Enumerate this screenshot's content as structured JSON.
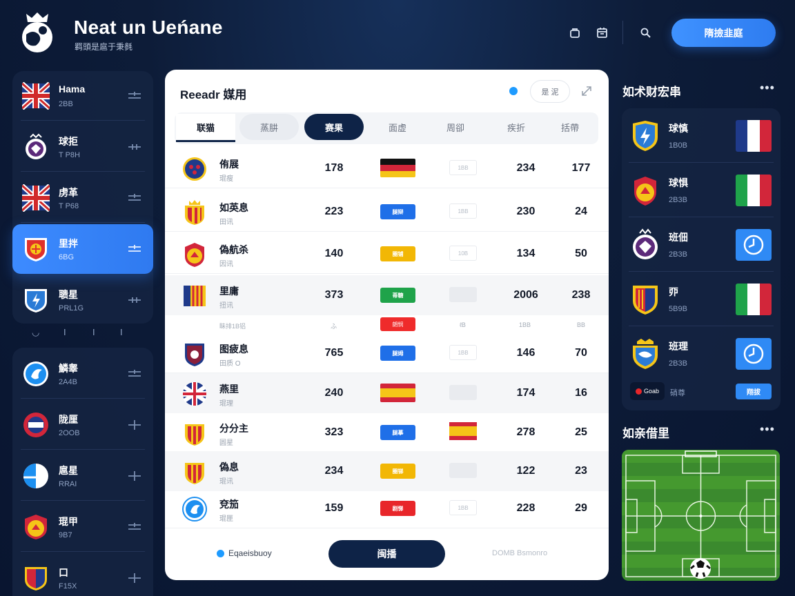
{
  "header": {
    "title": "Neat un Ueńane",
    "subtitle": "羁頭是扈于秉毵",
    "cta_label": "隋撿韭庭",
    "icons": [
      "bag-icon",
      "calendar-icon",
      "search-icon"
    ]
  },
  "sidebar": {
    "items": [
      {
        "name": "Hama",
        "sub": "2BB",
        "crest": "england-crest"
      },
      {
        "name": "球拒",
        "sub": "T P8H",
        "crest": "purple-crest"
      },
      {
        "name": "虏革",
        "sub": "T P68",
        "crest": "england-crest"
      },
      {
        "name": "里拌",
        "sub": "6BG",
        "crest": "red-yellow-shield"
      },
      {
        "name": "聩星",
        "sub": "PRL1G",
        "crest": "blue-shield"
      }
    ],
    "ticks": [
      "◡",
      "I",
      "I",
      "I"
    ],
    "items2": [
      {
        "name": "鱗睾",
        "sub": "2A4B",
        "crest": "blue-circle"
      },
      {
        "name": "陇厘",
        "sub": "2OOB",
        "crest": "red-blue-crest"
      },
      {
        "name": "扈星",
        "sub": "RRAI",
        "crest": "blue-white-circle"
      },
      {
        "name": "琨甲",
        "sub": "9B7",
        "crest": "yellow-red-crest"
      },
      {
        "name": "口",
        "sub": "F15X",
        "crest": "red-blue-shield"
      }
    ]
  },
  "standings": {
    "title": "Reeadr 媒用",
    "pill_label": "是 泥",
    "tabs": [
      "联猫",
      "蒸肼",
      "赛果",
      "面虚",
      "周卻",
      "疾折",
      "括帶"
    ],
    "rows": [
      {
        "name": "侑展",
        "sub": "琨瘦",
        "n1": "178",
        "mid": "flag-germany",
        "n2": "234",
        "n3": "177",
        "crest": "navy-red-circle",
        "badge2": "1BB"
      },
      {
        "name": "如英息",
        "sub": "田讯",
        "n1": "223",
        "mid": "blue",
        "mid_text": "腿辯",
        "n2": "230",
        "n3": "24",
        "crest": "spain-crest",
        "badge2": "1BB"
      },
      {
        "name": "偽航杀",
        "sub": "因讯",
        "n1": "140",
        "mid": "yellow",
        "mid_text": "圈铺",
        "n2": "134",
        "n3": "50",
        "crest": "yellow-red-crest",
        "badge2": "10B"
      },
      {
        "name": "里庸",
        "sub": "扭讯",
        "n1": "373",
        "mid": "green",
        "mid_text": "蒂糖",
        "n2": "2006",
        "n3": "238",
        "crest": "barca-flag",
        "badge2": "filled"
      },
      {
        "name": "图疲息",
        "sub": "田质 O",
        "n1": "765",
        "mid": "blue",
        "mid_text": "腿姆",
        "n2": "146",
        "n3": "70",
        "crest": "maroon-shield",
        "badge2": "1BB"
      },
      {
        "name": "燕里",
        "sub": "琨理",
        "n1": "240",
        "mid": "flag-spain",
        "n2": "174",
        "n3": "16",
        "crest": "uk-circle",
        "badge2": "filled"
      },
      {
        "name": "分分主",
        "sub": "圆星",
        "n1": "323",
        "mid": "blue",
        "mid_text": "腿摹",
        "n2": "278",
        "n3": "25",
        "crest": "spain-crest",
        "badge2": "flag-spain"
      },
      {
        "name": "偽息",
        "sub": "琨讯",
        "n1": "234",
        "mid": "yellow",
        "mid_text": "圈锑",
        "n2": "122",
        "n3": "23",
        "crest": "spain-crest",
        "badge2": "filled"
      },
      {
        "name": "兗笳",
        "sub": "琨匣",
        "n1": "159",
        "mid": "red",
        "mid_text": "剧悌",
        "n2": "228",
        "n3": "29",
        "crest": "blue-circle",
        "badge2": "1BB"
      }
    ],
    "sub_row": {
      "a": "眛排1B铝",
      "b": "ふ",
      "chip": "朗悯",
      "c": "ℓB",
      "d": "1ΒB",
      "e": "BB"
    },
    "footer_label": "Eqaeisbuoy",
    "footer_button": "闽播",
    "footer_link": "DOMB Bsmonro"
  },
  "right": {
    "title": "如术财宏串",
    "more": "•••",
    "items": [
      {
        "name": "球慎",
        "sub": "1B0B",
        "crest": "blue-shield",
        "side": "flag-france"
      },
      {
        "name": "球惧",
        "sub": "2B3B",
        "crest": "yellow-red-crest",
        "side": "flag-italy"
      },
      {
        "name": "班佃",
        "sub": "2B3B",
        "crest": "purple-crest",
        "side": "clock-button"
      },
      {
        "name": "丣",
        "sub": "5B9B",
        "crest": "red-blue-shield",
        "side": "flag-italy"
      },
      {
        "name": "班理",
        "sub": "2B3B",
        "crest": "blue-crest",
        "side": "clock-button"
      }
    ],
    "foot_badge": "Goab",
    "foot_text": "硝尊",
    "foot_button": "翔拔",
    "pitch_title": "如亲借里",
    "pitch_more": "•••"
  },
  "colors": {
    "accent": "#2f8af5",
    "navy": "#0e2347",
    "bg": "#0d1c38",
    "pitch": "#3b8a2e"
  }
}
